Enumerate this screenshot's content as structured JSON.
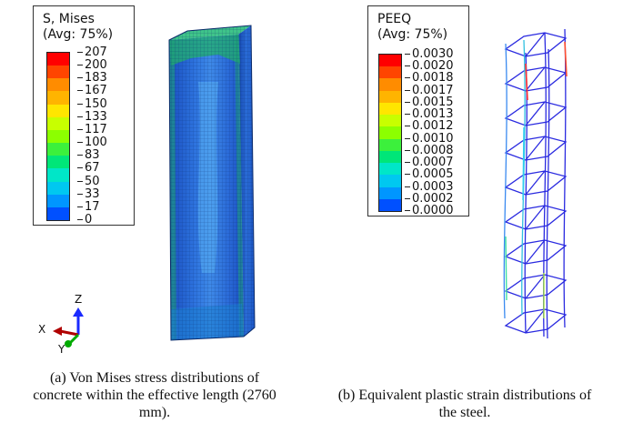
{
  "panel_a": {
    "legend": {
      "title_line1": "S, Mises",
      "title_line2": "(Avg: 75%)",
      "values": [
        "207",
        "200",
        "183",
        "167",
        "150",
        "133",
        "117",
        "100",
        "83",
        "67",
        "50",
        "33",
        "17",
        "0"
      ]
    },
    "axes": {
      "z": "Z",
      "x": "X",
      "y": "Y"
    },
    "caption_line1": "(a) Von Mises stress distributions of",
    "caption_line2": "concrete within the effective length (2760",
    "caption_line3": "mm)."
  },
  "panel_b": {
    "legend": {
      "title_line1": "PEEQ",
      "title_line2": "(Avg: 75%)",
      "values": [
        "0.0030",
        "0.0020",
        "0.0018",
        "0.0017",
        "0.0015",
        "0.0013",
        "0.0012",
        "0.0010",
        "0.0008",
        "0.0007",
        "0.0005",
        "0.0003",
        "0.0002",
        "0.0000"
      ]
    },
    "caption_line1": "(b) Equivalent plastic strain distributions of",
    "caption_line2": "the steel."
  },
  "colors": {
    "contour": [
      "#ff0000",
      "#ff4500",
      "#ff8c00",
      "#ffb400",
      "#ffe600",
      "#c8ff00",
      "#8cff00",
      "#3cf03c",
      "#00e678",
      "#00e6c8",
      "#00c8f0",
      "#0096ff",
      "#0050ff",
      "#0000ff"
    ],
    "concrete_base": "#1f5fd0",
    "concrete_light": "#4aa0f0",
    "mesh_line": "#0a2a6a",
    "cage": "#2a2ae0",
    "axis_z": "#1a2aff",
    "axis_x": "#b00000",
    "axis_y": "#00aa00"
  }
}
